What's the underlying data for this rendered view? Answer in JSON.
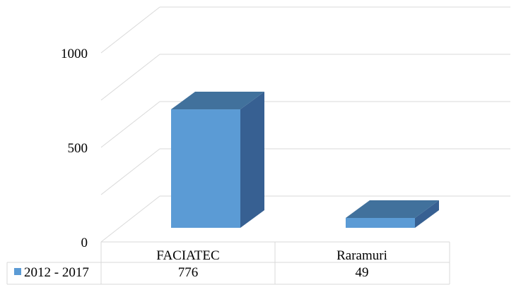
{
  "chart_data": {
    "type": "bar",
    "categories": [
      "FACIATEC",
      "Raramuri"
    ],
    "series": [
      {
        "name": "2012 - 2017",
        "values": [
          776,
          49
        ]
      }
    ],
    "title": "",
    "xlabel": "",
    "ylabel": "",
    "ylim": [
      0,
      1000
    ],
    "yticks": [
      0,
      500,
      1000
    ],
    "grid": true,
    "legend": "data-table",
    "data_table": true,
    "style": "3d-column"
  },
  "colors": {
    "bar_front": "#5b9bd5",
    "bar_top": "#41719c",
    "bar_side": "#376092",
    "grid": "#d9d9d9",
    "legend_key": "#5b9bd5"
  }
}
